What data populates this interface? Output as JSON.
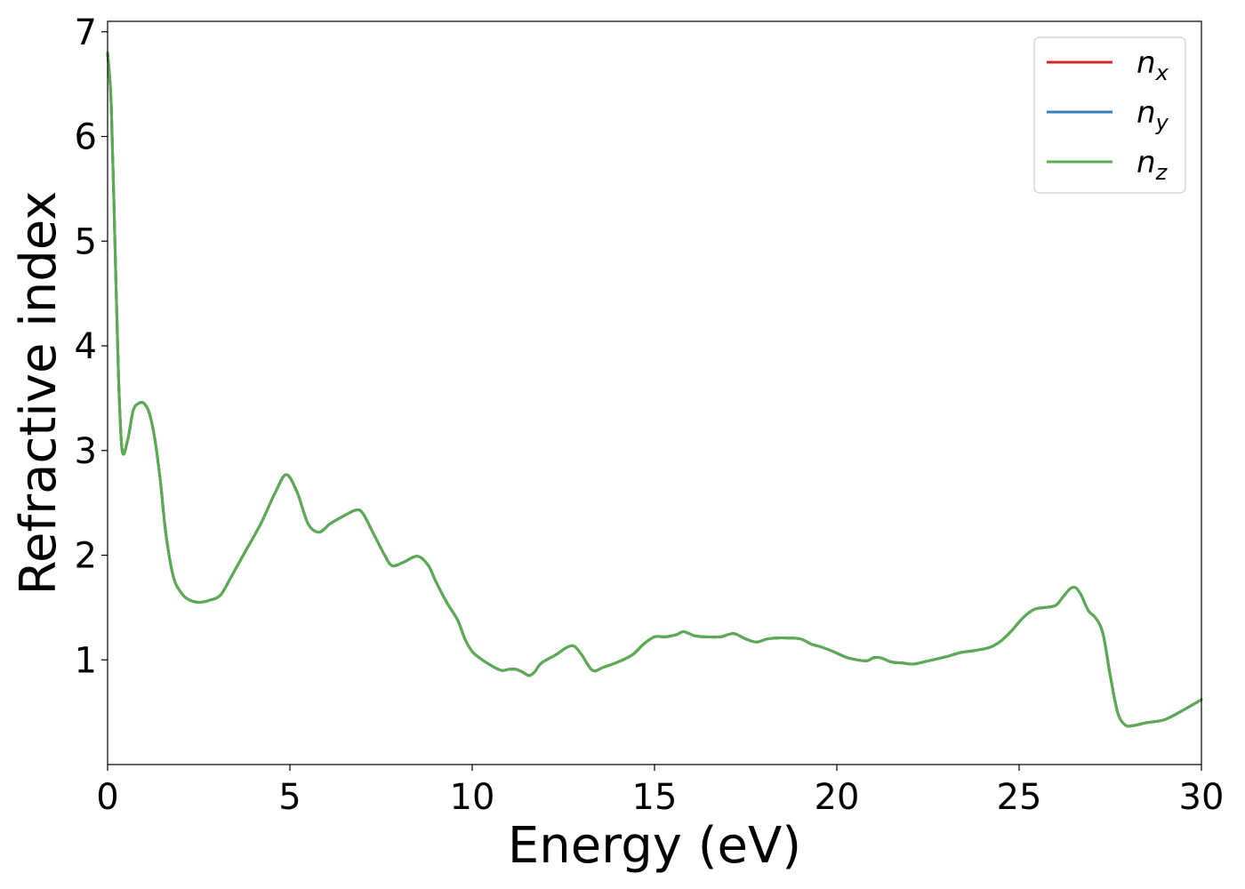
{
  "chart_data": {
    "type": "line",
    "title": "",
    "xlabel": "Energy (eV)",
    "ylabel": "Refractive index",
    "xlim": [
      0,
      30
    ],
    "ylim": [
      0,
      7.1
    ],
    "xticks": [
      0,
      5,
      10,
      15,
      20,
      25,
      30
    ],
    "xtick_labels": [
      "0",
      "5",
      "10",
      "15",
      "20",
      "25",
      "30"
    ],
    "yticks": [
      1,
      2,
      3,
      4,
      5,
      6,
      7
    ],
    "ytick_labels": [
      "1",
      "2",
      "3",
      "4",
      "5",
      "6",
      "7"
    ],
    "grid": false,
    "legend_position": "top-right",
    "x": [
      0,
      0.1,
      0.2,
      0.3,
      0.4,
      0.55,
      0.7,
      0.85,
      1.0,
      1.15,
      1.3,
      1.45,
      1.6,
      1.8,
      2.0,
      2.2,
      2.5,
      2.8,
      3.1,
      3.4,
      3.8,
      4.2,
      4.6,
      4.9,
      5.2,
      5.5,
      5.8,
      6.1,
      6.4,
      6.8,
      7.0,
      7.3,
      7.6,
      7.8,
      8.1,
      8.5,
      8.8,
      9.0,
      9.3,
      9.6,
      9.8,
      10.0,
      10.2,
      10.5,
      10.8,
      11.0,
      11.2,
      11.4,
      11.55,
      11.7,
      11.9,
      12.3,
      12.6,
      12.8,
      13.0,
      13.3,
      13.6,
      14.0,
      14.4,
      14.7,
      15.0,
      15.3,
      15.6,
      15.8,
      16.1,
      16.4,
      16.8,
      17.0,
      17.2,
      17.5,
      17.8,
      18.1,
      18.5,
      19.0,
      19.3,
      19.6,
      19.9,
      20.3,
      20.8,
      21.0,
      21.2,
      21.5,
      21.8,
      22.1,
      22.5,
      23.0,
      23.4,
      23.8,
      24.2,
      24.5,
      24.8,
      25.1,
      25.4,
      25.7,
      26.0,
      26.2,
      26.4,
      26.55,
      26.7,
      26.9,
      27.1,
      27.3,
      27.5,
      27.7,
      27.9,
      28.1,
      28.5,
      29.0,
      29.5,
      30.0
    ],
    "series": [
      {
        "name": "n_x",
        "label_main": "n",
        "label_sub": "x",
        "color": "#d62728",
        "y": [
          6.8,
          6.3,
          5.0,
          3.7,
          3.0,
          3.1,
          3.38,
          3.45,
          3.45,
          3.35,
          3.1,
          2.7,
          2.2,
          1.8,
          1.65,
          1.58,
          1.55,
          1.57,
          1.62,
          1.8,
          2.05,
          2.3,
          2.6,
          2.77,
          2.6,
          2.3,
          2.22,
          2.3,
          2.36,
          2.43,
          2.4,
          2.2,
          2.0,
          1.9,
          1.93,
          1.99,
          1.9,
          1.75,
          1.55,
          1.38,
          1.2,
          1.08,
          1.02,
          0.95,
          0.9,
          0.91,
          0.91,
          0.88,
          0.85,
          0.88,
          0.97,
          1.05,
          1.12,
          1.13,
          1.05,
          0.9,
          0.93,
          0.98,
          1.05,
          1.15,
          1.22,
          1.22,
          1.24,
          1.27,
          1.23,
          1.22,
          1.22,
          1.24,
          1.25,
          1.2,
          1.17,
          1.2,
          1.21,
          1.2,
          1.15,
          1.12,
          1.08,
          1.02,
          0.99,
          1.02,
          1.02,
          0.98,
          0.97,
          0.96,
          0.99,
          1.03,
          1.07,
          1.09,
          1.12,
          1.18,
          1.28,
          1.4,
          1.48,
          1.5,
          1.52,
          1.6,
          1.68,
          1.69,
          1.62,
          1.47,
          1.4,
          1.25,
          0.85,
          0.5,
          0.38,
          0.37,
          0.4,
          0.43,
          0.52,
          0.62
        ]
      },
      {
        "name": "n_y",
        "label_main": "n",
        "label_sub": "y",
        "color": "#377eb8",
        "y": [
          6.8,
          6.3,
          5.0,
          3.7,
          3.0,
          3.1,
          3.38,
          3.45,
          3.45,
          3.35,
          3.1,
          2.7,
          2.2,
          1.8,
          1.65,
          1.58,
          1.55,
          1.57,
          1.62,
          1.8,
          2.05,
          2.3,
          2.6,
          2.77,
          2.6,
          2.3,
          2.22,
          2.3,
          2.36,
          2.43,
          2.4,
          2.2,
          2.0,
          1.9,
          1.93,
          1.99,
          1.9,
          1.75,
          1.55,
          1.38,
          1.2,
          1.08,
          1.02,
          0.95,
          0.9,
          0.91,
          0.91,
          0.88,
          0.85,
          0.88,
          0.97,
          1.05,
          1.12,
          1.13,
          1.05,
          0.9,
          0.93,
          0.98,
          1.05,
          1.15,
          1.22,
          1.22,
          1.24,
          1.27,
          1.23,
          1.22,
          1.22,
          1.24,
          1.25,
          1.2,
          1.17,
          1.2,
          1.21,
          1.2,
          1.15,
          1.12,
          1.08,
          1.02,
          0.99,
          1.02,
          1.02,
          0.98,
          0.97,
          0.96,
          0.99,
          1.03,
          1.07,
          1.09,
          1.12,
          1.18,
          1.28,
          1.4,
          1.48,
          1.5,
          1.52,
          1.6,
          1.68,
          1.69,
          1.62,
          1.47,
          1.4,
          1.25,
          0.85,
          0.5,
          0.38,
          0.37,
          0.4,
          0.43,
          0.52,
          0.62
        ]
      },
      {
        "name": "n_z",
        "label_main": "n",
        "label_sub": "z",
        "color": "#5aac50",
        "y": [
          6.8,
          6.3,
          5.0,
          3.7,
          3.0,
          3.1,
          3.38,
          3.45,
          3.45,
          3.35,
          3.1,
          2.7,
          2.2,
          1.8,
          1.65,
          1.58,
          1.55,
          1.57,
          1.62,
          1.8,
          2.05,
          2.3,
          2.6,
          2.77,
          2.6,
          2.3,
          2.22,
          2.3,
          2.36,
          2.43,
          2.4,
          2.2,
          2.0,
          1.9,
          1.93,
          1.99,
          1.9,
          1.75,
          1.55,
          1.38,
          1.2,
          1.08,
          1.02,
          0.95,
          0.9,
          0.91,
          0.91,
          0.88,
          0.85,
          0.88,
          0.97,
          1.05,
          1.12,
          1.13,
          1.05,
          0.9,
          0.93,
          0.98,
          1.05,
          1.15,
          1.22,
          1.22,
          1.24,
          1.27,
          1.23,
          1.22,
          1.22,
          1.24,
          1.25,
          1.2,
          1.17,
          1.2,
          1.21,
          1.2,
          1.15,
          1.12,
          1.08,
          1.02,
          0.99,
          1.02,
          1.02,
          0.98,
          0.97,
          0.96,
          0.99,
          1.03,
          1.07,
          1.09,
          1.12,
          1.18,
          1.28,
          1.4,
          1.48,
          1.5,
          1.52,
          1.6,
          1.68,
          1.69,
          1.62,
          1.47,
          1.4,
          1.25,
          0.85,
          0.5,
          0.38,
          0.37,
          0.4,
          0.43,
          0.52,
          0.62
        ]
      }
    ]
  }
}
